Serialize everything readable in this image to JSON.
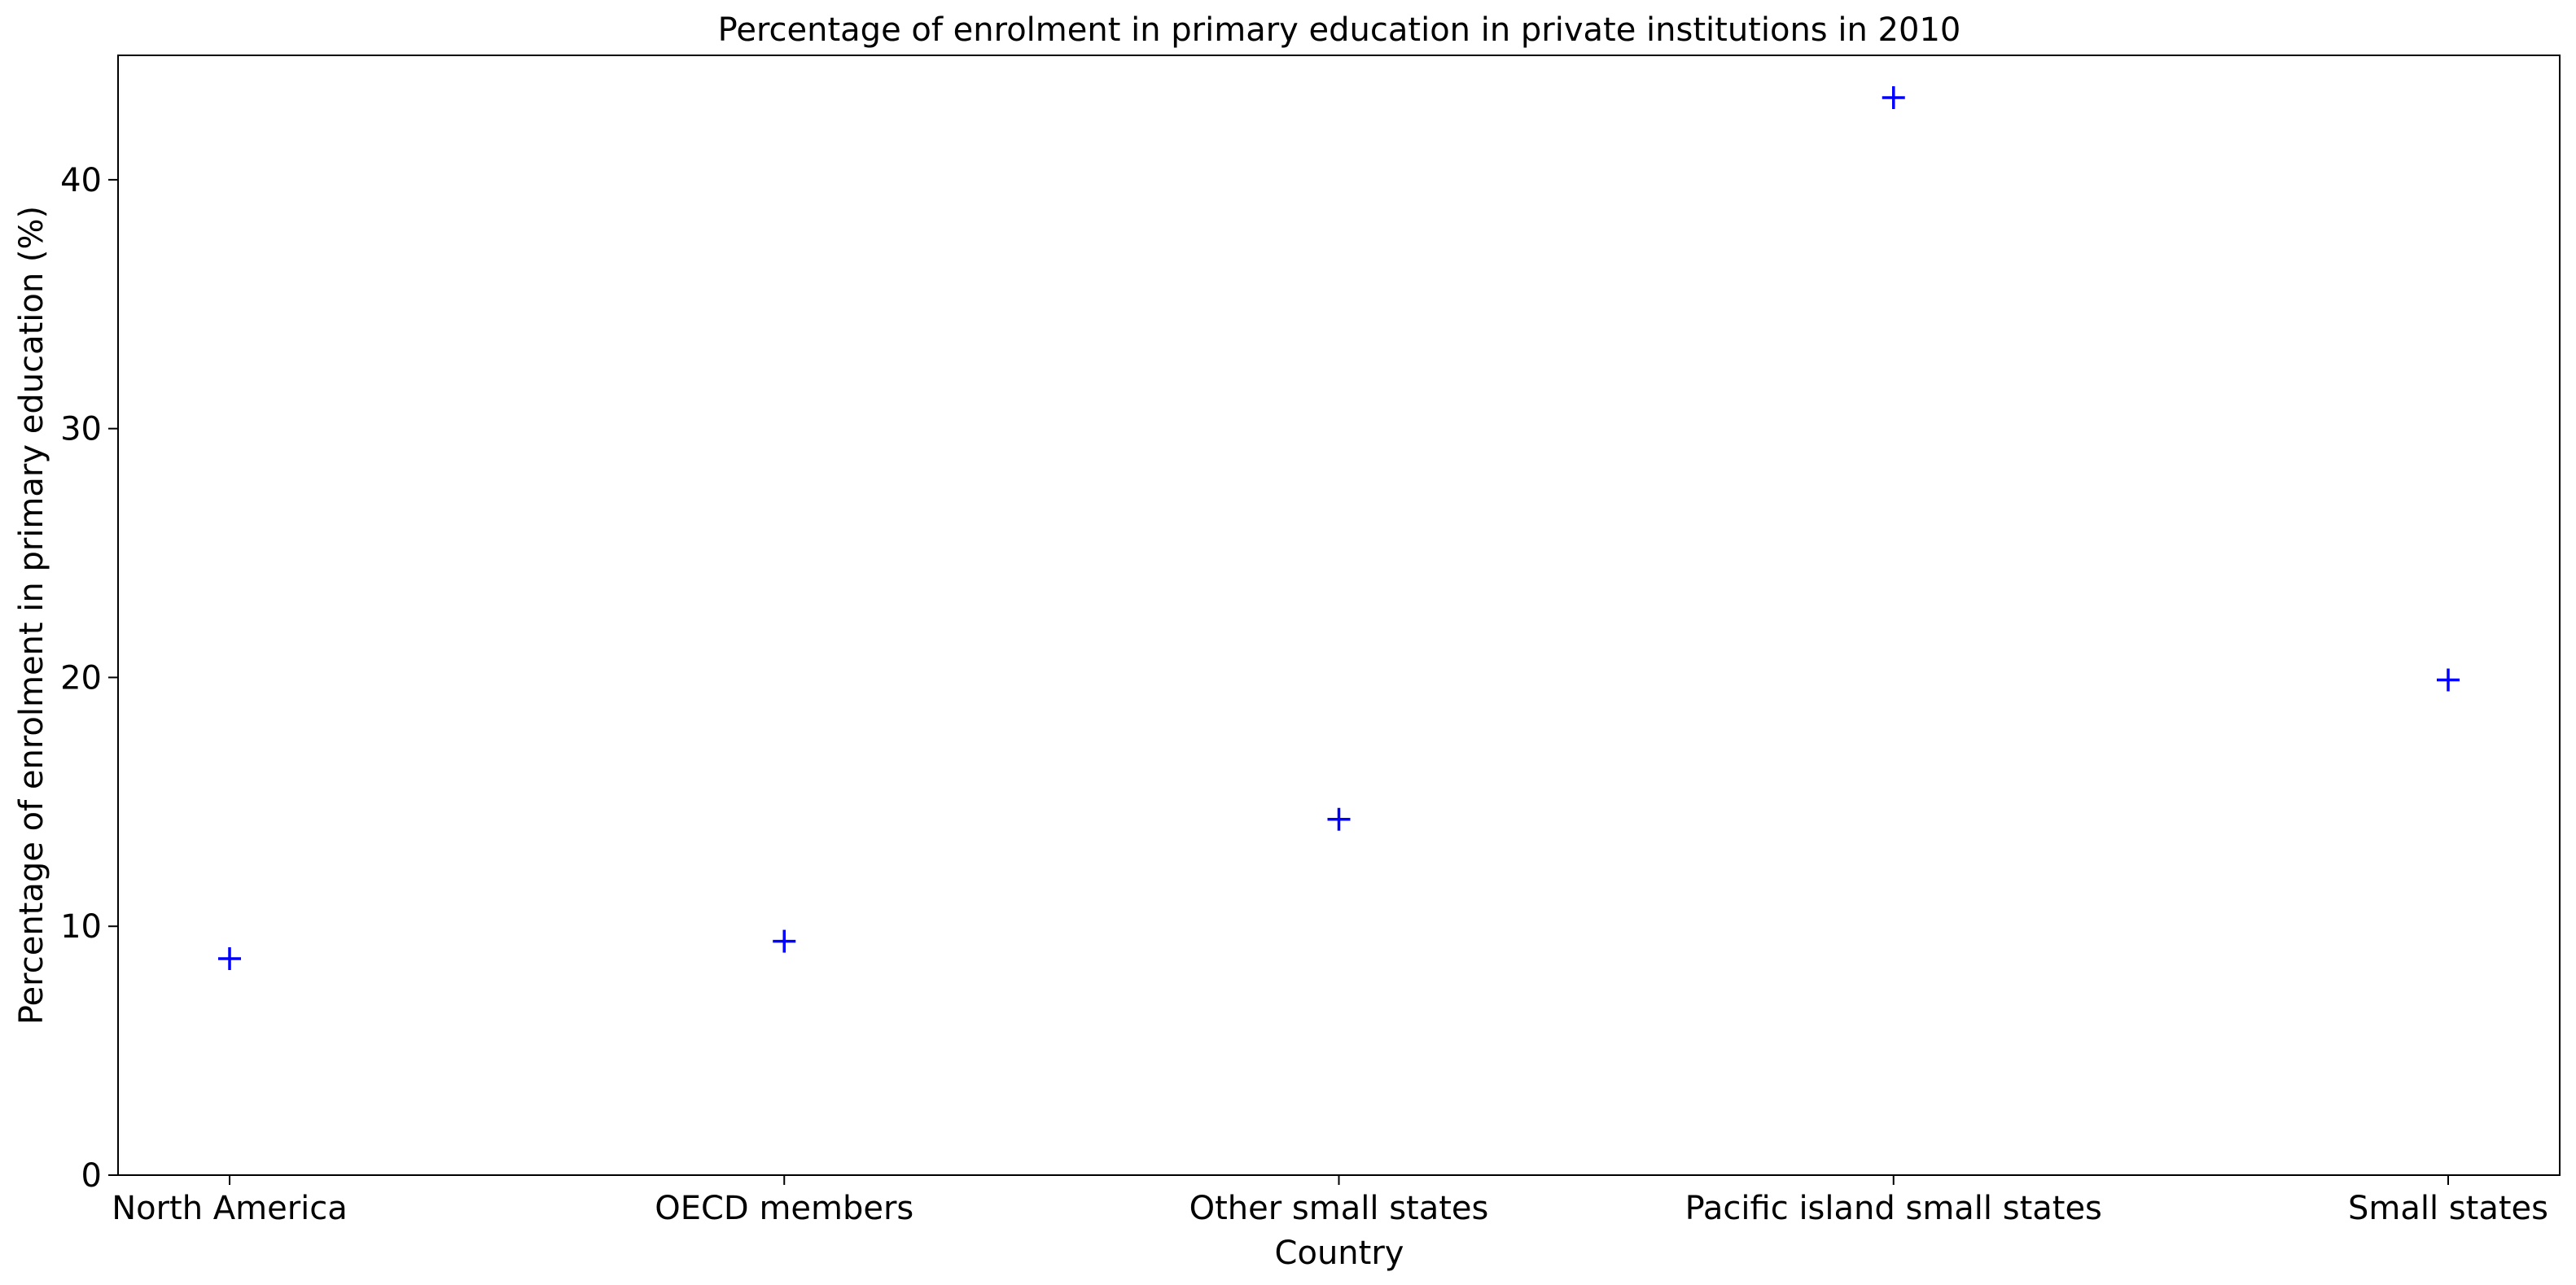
{
  "chart_data": {
    "type": "scatter",
    "title": "Percentage of enrolment in primary education in private institutions in 2010",
    "xlabel": "Country",
    "ylabel": "Percentage of enrolment in primary education (%)",
    "categories": [
      "North America",
      "OECD members",
      "Other small states",
      "Pacific island small states",
      "Small states"
    ],
    "values": [
      8.7,
      9.4,
      14.3,
      43.3,
      19.9
    ],
    "ylim": [
      0,
      45
    ],
    "yticks": [
      0,
      10,
      20,
      30,
      40
    ],
    "grid": false,
    "marker": "plus",
    "marker_color": "#0000ff"
  }
}
